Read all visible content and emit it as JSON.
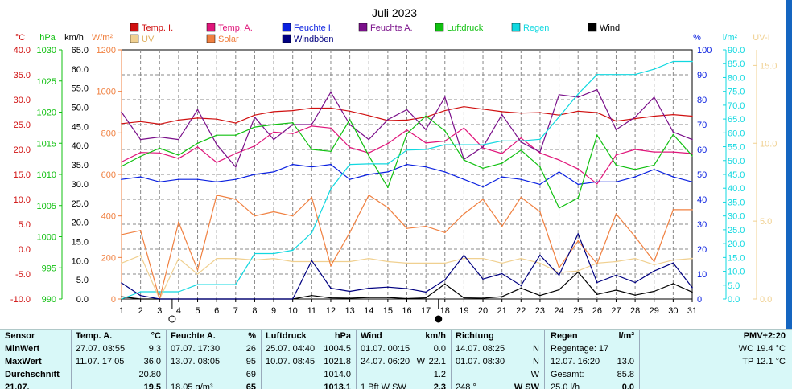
{
  "title": "Juli 2023",
  "colors": {
    "temp_i": "#d01010",
    "temp_a": "#e0157a",
    "feuchte_i": "#0a20e0",
    "feuchte_a": "#7a108a",
    "luftdruck": "#10c010",
    "regen": "#10d8e0",
    "wind": "#000000",
    "uv": "#f0d090",
    "solar": "#f08040",
    "windboeen": "#000080"
  },
  "axis_labels": {
    "celsius": "°C",
    "hpa": "hPa",
    "kmh": "km/h",
    "solar": "W/m²",
    "percent": "%",
    "rain": "l/m²",
    "uv": "UV-I"
  },
  "chart_data": {
    "type": "line",
    "title": "Juli 2023",
    "x": [
      1,
      2,
      3,
      4,
      5,
      6,
      7,
      8,
      9,
      10,
      11,
      12,
      13,
      14,
      15,
      16,
      17,
      18,
      19,
      20,
      21,
      22,
      23,
      24,
      25,
      26,
      27,
      28,
      29,
      30,
      31
    ],
    "xlim": [
      1,
      31
    ],
    "x_markers": [
      {
        "day": 4,
        "symbol": "empty-circle",
        "label": "new-moon-marker"
      },
      {
        "day": 18,
        "symbol": "filled-circle",
        "label": "full-moon-marker"
      }
    ],
    "axes": {
      "celsius": {
        "label": "°C",
        "range": [
          -10,
          40
        ],
        "ticks": [
          "40.0",
          "35.0",
          "30.0",
          "25.0",
          "20.0",
          "15.0",
          "10.0",
          "5.0",
          "0.0",
          "-5.0",
          "-10.0"
        ]
      },
      "hpa": {
        "label": "hPa",
        "range": [
          990,
          1030
        ],
        "ticks": [
          "1030",
          "1025",
          "1020",
          "1015",
          "1010",
          "1005",
          "1000",
          "995",
          "990"
        ]
      },
      "kmh": {
        "label": "km/h",
        "range": [
          0,
          65
        ],
        "ticks": [
          "65.0",
          "60.0",
          "55.0",
          "50.0",
          "45.0",
          "40.0",
          "35.0",
          "30.0",
          "25.0",
          "20.0",
          "15.0",
          "10.0",
          "5.0",
          "0.0"
        ]
      },
      "solar": {
        "label": "W/m²",
        "range": [
          0,
          1200
        ],
        "ticks": [
          "1200",
          "1000",
          "800",
          "600",
          "400",
          "200",
          "0"
        ]
      },
      "percent": {
        "label": "%",
        "range": [
          0,
          100
        ],
        "ticks": [
          "100",
          "90",
          "80",
          "70",
          "60",
          "50",
          "40",
          "30",
          "20",
          "10",
          "0"
        ]
      },
      "rain": {
        "label": "l/m²",
        "range": [
          0,
          90
        ],
        "ticks": [
          "90.0",
          "85.0",
          "80.0",
          "75.0",
          "70.0",
          "65.0",
          "60.0",
          "55.0",
          "50.0",
          "45.0",
          "40.0",
          "35.0",
          "30.0",
          "25.0",
          "20.0",
          "15.0",
          "10.0",
          "5.0",
          "0.0"
        ]
      },
      "uv": {
        "label": "UV-I",
        "range": [
          0,
          16
        ],
        "ticks": [
          "15.0",
          "10.0",
          "5.0",
          "0.0"
        ]
      }
    },
    "series": [
      {
        "key": "temp_i",
        "name": "Temp. I.",
        "axis": "celsius",
        "color": "#d01010",
        "values": [
          25.2,
          25.6,
          25.1,
          25.9,
          26.3,
          26.1,
          25.3,
          26.9,
          27.6,
          27.8,
          28.3,
          28.3,
          27.7,
          26.8,
          25.8,
          25.9,
          26.5,
          27.8,
          28.6,
          28.1,
          27.6,
          27.3,
          27.4,
          26.9,
          27.7,
          27.4,
          25.7,
          26.2,
          26.7,
          27.0,
          26.7
        ]
      },
      {
        "key": "temp_a",
        "name": "Temp. A.",
        "axis": "celsius",
        "color": "#e0157a",
        "values": [
          17.5,
          19.4,
          19.3,
          18.2,
          20.5,
          17.4,
          19.2,
          20.7,
          23.5,
          23.2,
          24.7,
          24.3,
          20.4,
          19.3,
          21.2,
          23.9,
          21.3,
          21.7,
          24.3,
          20.3,
          19.2,
          22.3,
          19.3,
          17.9,
          16.1,
          13.1,
          18.9,
          20.0,
          19.5,
          19.5,
          19.2
        ]
      },
      {
        "key": "feuchte_i",
        "name": "Feuchte I.",
        "axis": "percent",
        "color": "#0a20e0",
        "values": [
          48,
          49,
          47,
          48,
          48,
          47,
          48,
          50,
          51,
          54,
          53,
          54,
          48,
          50,
          51,
          54,
          53,
          51,
          48,
          45,
          49,
          48,
          46,
          51,
          46,
          47,
          47,
          49,
          52,
          49,
          47
        ]
      },
      {
        "key": "feuchte_a",
        "name": "Feuchte A.",
        "axis": "percent",
        "color": "#7a108a",
        "values": [
          75,
          64,
          65,
          64,
          76,
          62,
          53,
          73,
          64,
          70,
          70,
          83,
          70,
          64,
          72,
          76,
          68,
          81,
          56,
          61,
          74,
          63,
          59,
          82,
          81,
          84,
          68,
          73,
          81,
          67,
          64
        ]
      },
      {
        "key": "luftdruck",
        "name": "Luftdruck",
        "axis": "hpa",
        "color": "#10c010",
        "values": [
          1011.3,
          1012.9,
          1014.2,
          1013.1,
          1015.0,
          1016.3,
          1016.3,
          1017.6,
          1018.0,
          1018.3,
          1014.0,
          1013.7,
          1018.8,
          1013.0,
          1007.9,
          1016.5,
          1019.4,
          1017.0,
          1012.3,
          1011.0,
          1011.8,
          1013.9,
          1011.2,
          1004.6,
          1006.2,
          1016.3,
          1011.5,
          1010.8,
          1011.5,
          1016.4,
          1013.0
        ]
      },
      {
        "key": "regen",
        "name": "Regen",
        "axis": "rain",
        "color": "#10d8e0",
        "values": [
          0.0,
          2.6,
          2.6,
          2.6,
          5.2,
          5.2,
          5.2,
          16.4,
          16.4,
          17.6,
          23.9,
          39.8,
          48.6,
          48.8,
          48.8,
          53.8,
          54.0,
          55.7,
          55.7,
          55.7,
          57.1,
          57.1,
          57.7,
          65.8,
          74.0,
          81.1,
          81.1,
          81.1,
          83.0,
          85.8,
          85.8
        ]
      },
      {
        "key": "wind",
        "name": "Wind",
        "axis": "kmh",
        "color": "#000000",
        "values": [
          0.6,
          0.0,
          0.0,
          0.0,
          0.0,
          0.0,
          0.0,
          0.0,
          0.0,
          0.0,
          0.9,
          0.3,
          0.2,
          0.4,
          0.4,
          0.1,
          0.3,
          3.9,
          0.3,
          0.2,
          0.6,
          2.8,
          0.9,
          2.4,
          7.0,
          1.2,
          2.3,
          1.0,
          2.0,
          4.0,
          1.8
        ]
      },
      {
        "key": "uv",
        "name": "UV",
        "axis": "uv",
        "color": "#f0d090",
        "values": [
          2.3,
          2.8,
          0.0,
          2.6,
          1.6,
          2.6,
          2.6,
          2.5,
          2.6,
          2.4,
          2.4,
          2.4,
          2.4,
          2.6,
          2.4,
          2.3,
          2.3,
          2.3,
          2.6,
          2.6,
          2.3,
          2.6,
          2.3,
          1.7,
          1.8,
          2.3,
          2.4,
          2.6,
          2.2,
          2.5,
          2.6
        ]
      },
      {
        "key": "solar",
        "name": "Solar",
        "axis": "solar",
        "color": "#f08040",
        "values": [
          310,
          330,
          0,
          370,
          140,
          500,
          480,
          400,
          420,
          400,
          490,
          160,
          320,
          500,
          440,
          340,
          350,
          320,
          410,
          480,
          350,
          490,
          420,
          150,
          280,
          170,
          410,
          300,
          180,
          430,
          430
        ]
      },
      {
        "key": "windboeen",
        "name": "Windböen",
        "axis": "kmh",
        "color": "#000080",
        "values": [
          4.2,
          0.9,
          0.0,
          0.0,
          0.0,
          0.0,
          0.0,
          0.0,
          0.0,
          0.0,
          10.0,
          2.8,
          2.0,
          2.8,
          3.1,
          2.7,
          1.8,
          5.0,
          11.4,
          5.2,
          6.6,
          3.5,
          11.4,
          6.2,
          17.0,
          4.3,
          6.2,
          4.3,
          7.3,
          9.4,
          3.0
        ]
      }
    ]
  },
  "legend": [
    {
      "key": "temp_i",
      "label": "Temp. I."
    },
    {
      "key": "temp_a",
      "label": "Temp. A."
    },
    {
      "key": "feuchte_i",
      "label": "Feuchte I."
    },
    {
      "key": "feuchte_a",
      "label": "Feuchte A."
    },
    {
      "key": "luftdruck",
      "label": "Luftdruck"
    },
    {
      "key": "regen",
      "label": "Regen"
    },
    {
      "key": "wind",
      "label": "Wind"
    },
    {
      "key": "uv",
      "label": "UV"
    },
    {
      "key": "solar",
      "label": "Solar"
    },
    {
      "key": "windboeen",
      "label": "Windböen"
    }
  ],
  "stats": {
    "rows": [
      "Sensor",
      "MinWert",
      "MaxWert",
      "Durchschnitt",
      "21.07."
    ],
    "temp": {
      "header": "Temp. A.",
      "unit": "°C",
      "min_date": "27.07.  03:55",
      "min_val": "9.3",
      "max_date": "11.07.  17:05",
      "max_val": "36.0",
      "avg": "20.80",
      "last_partial": "19.5"
    },
    "feuchte": {
      "header": "Feuchte A.",
      "unit": "%",
      "min_date": "07.07.  17:30",
      "min_val": "26",
      "max_date": "13.07.  08:05",
      "max_val": "95",
      "avg": "69",
      "last_extra": "18.05 g/m³",
      "last_partial": "65"
    },
    "luftdruck": {
      "header": "Luftdruck",
      "unit": "hPa",
      "min_date": "25.07.  04:40",
      "min_val": "1004.5",
      "max_date": "10.07.  08:45",
      "max_val": "1021.8",
      "avg": "1014.0",
      "last_partial": "1013.1"
    },
    "wind": {
      "header": "Wind",
      "unit": "km/h",
      "min_date": "01.07.  00:15",
      "min_val": "0.0",
      "max_date": "24.07.  06:20",
      "max_dir": "W",
      "max_val": "22.1",
      "avg": "1.2",
      "last_extra": "1 Bft W SW",
      "last_partial": "2.3"
    },
    "richtung": {
      "header": "Richtung",
      "min_date": "14.07.  08:25",
      "min_dir": "N",
      "max_date": "01.07.  08:30",
      "max_dir": "N",
      "avg": "W",
      "last_extra": "248 °",
      "last_partial": "W SW"
    },
    "regen": {
      "header": "Regen",
      "unit": "l/m²",
      "regentage": "Regentage: 17",
      "max_date": "12.07.  16:20",
      "max_val": "13.0",
      "gesamt_label": "Gesamt:",
      "gesamt_val": "85.8",
      "last_extra": "25.0 l/h",
      "last_partial": "0.0"
    },
    "pmv": {
      "header": "PMV+2:20",
      "wc": "WC 19.4 °C",
      "tp": "TP 12.1 °C"
    }
  }
}
